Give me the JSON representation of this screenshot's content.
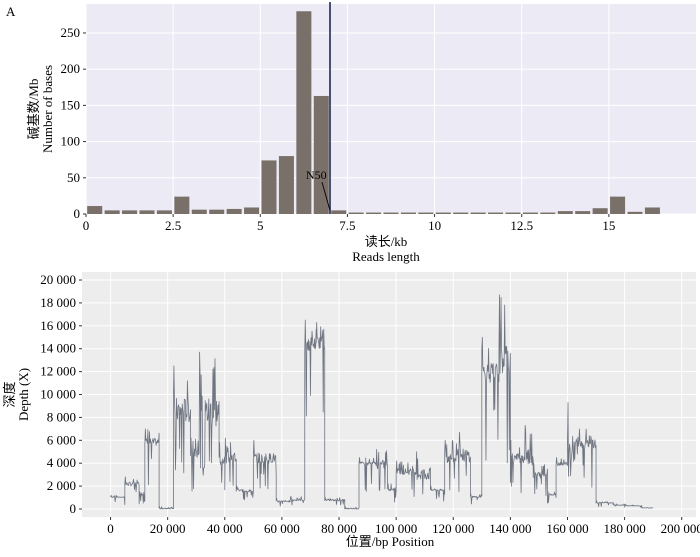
{
  "chart_data": [
    {
      "panel_label": "A",
      "type": "bar",
      "xlabel_cn": "读长/kb",
      "xlabel_en": "Reads length",
      "ylabel_cn": "碱基数/Mb",
      "ylabel_en": "Number of bases",
      "xlim": [
        0,
        17.5
      ],
      "ylim": [
        0,
        290
      ],
      "xticks": [
        0,
        2.5,
        5,
        7.5,
        10,
        12.5,
        15
      ],
      "xtick_labels": [
        "0",
        "2.5",
        "5",
        "7.5",
        "10",
        "12.5",
        "15"
      ],
      "yticks": [
        0,
        50,
        100,
        150,
        200,
        250
      ],
      "ytick_labels": [
        "0",
        "50",
        "100",
        "150",
        "200",
        "250"
      ],
      "bin_width": 0.5,
      "bins": [
        0.25,
        0.75,
        1.25,
        1.75,
        2.25,
        2.75,
        3.25,
        3.75,
        4.25,
        4.75,
        5.25,
        5.75,
        6.25,
        6.75,
        7.25,
        7.75,
        8.25,
        8.75,
        9.25,
        9.75,
        10.25,
        10.75,
        11.25,
        11.75,
        12.25,
        12.75,
        13.25,
        13.75,
        14.25,
        14.75,
        15.25,
        15.75,
        16.25
      ],
      "values": [
        11,
        5,
        5,
        5,
        5,
        24,
        6,
        6,
        7,
        9,
        74,
        80,
        280,
        163,
        5,
        2,
        2,
        2,
        2,
        2,
        2,
        2,
        2,
        2,
        2,
        2,
        2,
        4,
        4,
        8,
        24,
        3,
        9
      ],
      "n50_value": 7.0,
      "n50_label": "N50",
      "bar_color": "#7a706a",
      "n50_color": "#1f2a50",
      "panel_bg": "#ecebf5"
    },
    {
      "type": "line",
      "xlabel": "位置/bp Position",
      "ylabel_cn": "深度",
      "ylabel_en": "Depth (X)",
      "xlim": [
        -10000,
        205000
      ],
      "ylim": [
        -700,
        20700
      ],
      "xticks": [
        0,
        20000,
        40000,
        60000,
        80000,
        100000,
        120000,
        140000,
        160000,
        180000,
        200000
      ],
      "xtick_labels": [
        "0",
        "20 000",
        "40 000",
        "60 000",
        "80 000",
        "100 000",
        "120 000",
        "140 000",
        "160 000",
        "180 000",
        "200 000"
      ],
      "yticks": [
        0,
        2000,
        4000,
        6000,
        8000,
        10000,
        12000,
        14000,
        16000,
        18000,
        20000
      ],
      "ytick_labels": [
        "0",
        "2 000",
        "4 000",
        "6 000",
        "8 000",
        "10 000",
        "12 000",
        "14 000",
        "16 000",
        "18 000",
        "20 000"
      ],
      "line_color": "#6e7480",
      "panel_bg": "#ededee",
      "segments": [
        {
          "x0": 0,
          "x1": 5000,
          "level": 1000,
          "peak": 1200
        },
        {
          "x0": 5000,
          "x1": 10000,
          "level": 2000,
          "peak": 2800
        },
        {
          "x0": 10000,
          "x1": 12000,
          "level": 1200,
          "peak": 1500
        },
        {
          "x0": 12000,
          "x1": 17000,
          "level": 5500,
          "peak": 7000
        },
        {
          "x0": 17000,
          "x1": 22000,
          "level": 0,
          "peak": 200
        },
        {
          "x0": 22000,
          "x1": 28000,
          "level": 7500,
          "peak": 12500
        },
        {
          "x0": 28000,
          "x1": 31000,
          "level": 4500,
          "peak": 6200
        },
        {
          "x0": 31000,
          "x1": 38000,
          "level": 7000,
          "peak": 13700
        },
        {
          "x0": 38000,
          "x1": 40000,
          "level": 3800,
          "peak": 5800
        },
        {
          "x0": 40000,
          "x1": 44000,
          "level": 4000,
          "peak": 6200
        },
        {
          "x0": 44000,
          "x1": 50000,
          "level": 1500,
          "peak": 2000
        },
        {
          "x0": 50000,
          "x1": 58000,
          "level": 4000,
          "peak": 6000
        },
        {
          "x0": 58000,
          "x1": 63000,
          "level": 600,
          "peak": 900
        },
        {
          "x0": 63000,
          "x1": 68000,
          "level": 700,
          "peak": 1100
        },
        {
          "x0": 68000,
          "x1": 72000,
          "level": 13800,
          "peak": 16500
        },
        {
          "x0": 72000,
          "x1": 75000,
          "level": 14000,
          "peak": 16300
        },
        {
          "x0": 75000,
          "x1": 82000,
          "level": 700,
          "peak": 1000
        },
        {
          "x0": 82000,
          "x1": 87000,
          "level": 0,
          "peak": 200
        },
        {
          "x0": 87000,
          "x1": 93000,
          "level": 3800,
          "peak": 4500
        },
        {
          "x0": 93000,
          "x1": 97000,
          "level": 3500,
          "peak": 5200
        },
        {
          "x0": 97000,
          "x1": 100000,
          "level": 1600,
          "peak": 2200
        },
        {
          "x0": 100000,
          "x1": 107000,
          "level": 3000,
          "peak": 4200
        },
        {
          "x0": 107000,
          "x1": 112000,
          "level": 2500,
          "peak": 5000
        },
        {
          "x0": 112000,
          "x1": 117000,
          "level": 1600,
          "peak": 2000
        },
        {
          "x0": 117000,
          "x1": 122000,
          "level": 4000,
          "peak": 6000
        },
        {
          "x0": 122000,
          "x1": 126000,
          "level": 4100,
          "peak": 6700
        },
        {
          "x0": 126000,
          "x1": 130000,
          "level": 1000,
          "peak": 1300
        },
        {
          "x0": 130000,
          "x1": 136000,
          "level": 11000,
          "peak": 15000
        },
        {
          "x0": 136000,
          "x1": 140000,
          "level": 11500,
          "peak": 18700
        },
        {
          "x0": 140000,
          "x1": 145000,
          "level": 4000,
          "peak": 6000
        },
        {
          "x0": 145000,
          "x1": 148000,
          "level": 3800,
          "peak": 7300
        },
        {
          "x0": 148000,
          "x1": 153000,
          "level": 2700,
          "peak": 4000
        },
        {
          "x0": 153000,
          "x1": 156000,
          "level": 1200,
          "peak": 1500
        },
        {
          "x0": 156000,
          "x1": 160000,
          "level": 3800,
          "peak": 4500
        },
        {
          "x0": 160000,
          "x1": 164000,
          "level": 4000,
          "peak": 9300
        },
        {
          "x0": 164000,
          "x1": 170000,
          "level": 5300,
          "peak": 7000
        },
        {
          "x0": 170000,
          "x1": 176000,
          "level": 500,
          "peak": 700
        },
        {
          "x0": 176000,
          "x1": 180000,
          "level": 300,
          "peak": 450
        },
        {
          "x0": 180000,
          "x1": 186000,
          "level": 250,
          "peak": 400
        },
        {
          "x0": 186000,
          "x1": 190000,
          "level": 80,
          "peak": 150
        }
      ]
    }
  ]
}
